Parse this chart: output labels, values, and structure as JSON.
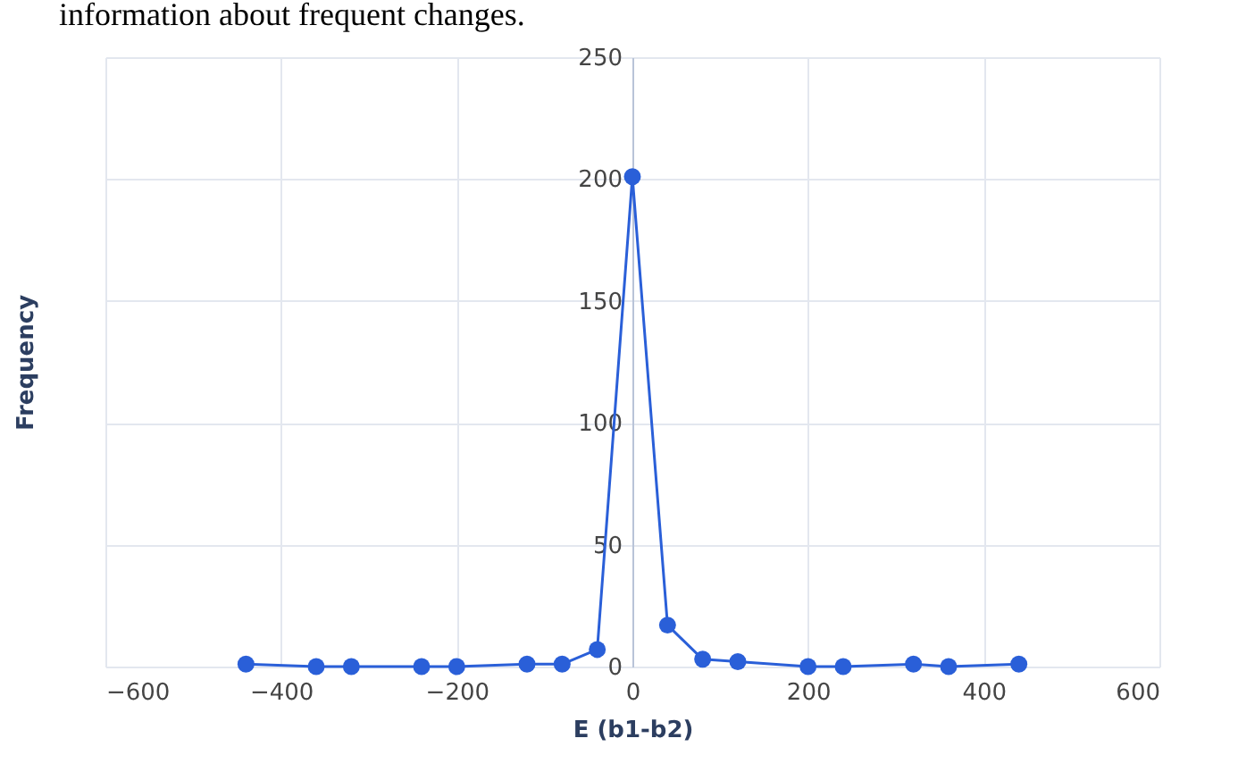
{
  "chart_data": {
    "type": "line",
    "xlabel": "E (b1-b2)",
    "ylabel": "Frequency",
    "annotations": [
      "information about frequent changes."
    ],
    "x": [
      -440,
      -360,
      -320,
      -240,
      -200,
      -120,
      -80,
      -40,
      0,
      40,
      80,
      120,
      200,
      240,
      320,
      360,
      440
    ],
    "series": [
      {
        "color": "#2a5fd8",
        "values": [
          1,
          0,
          0,
          0,
          0,
          1,
          1,
          7,
          201,
          17,
          3,
          2,
          0,
          0,
          1,
          0,
          1
        ]
      }
    ],
    "xlim": [
      -600,
      600
    ],
    "xticks": [
      -600,
      -400,
      -200,
      0,
      200,
      400,
      600
    ],
    "ylim": [
      0,
      250
    ],
    "yticks": [
      0,
      50,
      100,
      150,
      200,
      250
    ],
    "grid": true,
    "marker": "circle",
    "line_style": "solid"
  }
}
